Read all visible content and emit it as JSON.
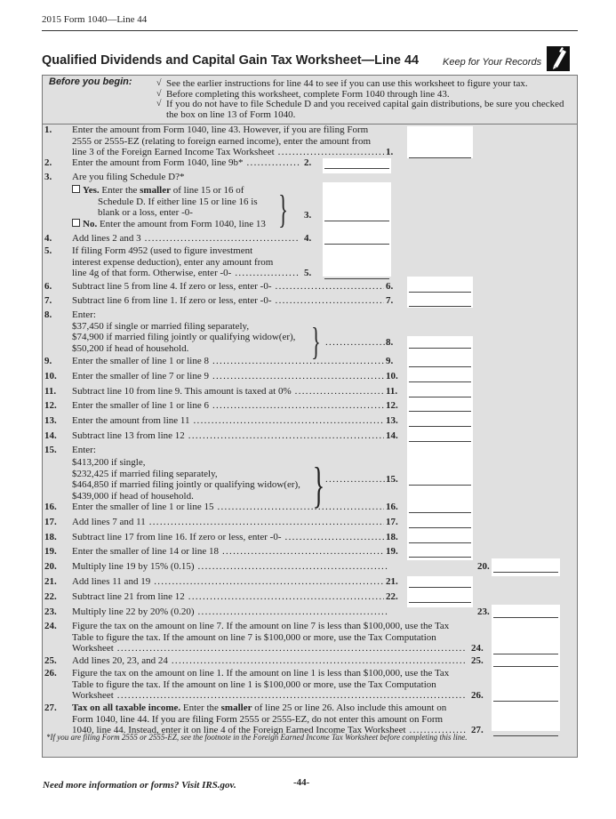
{
  "header": {
    "running_head": "2015 Form 1040—Line 44"
  },
  "title": "Qualified Dividends and Capital Gain Tax Worksheet—Line 44",
  "keep_label": "Keep for Your Records",
  "icons": {
    "pencil": "pencil-icon",
    "check": "check-icon",
    "checkbox": "checkbox-icon"
  },
  "before_you_begin": {
    "label": "Before you begin:",
    "check_glyph": "√",
    "items": [
      [
        "See the earlier instructions for line 44 to see if you can use this worksheet to figure your tax."
      ],
      [
        "Before completing this worksheet, complete Form 1040 through line 43."
      ],
      [
        "If you do not have to file Schedule D and you received capital gain distributions, be sure you checked",
        "the box on line 13 of Form 1040."
      ]
    ]
  },
  "items": [
    {
      "num": "1.",
      "ref": "1.",
      "lines": [
        "Enter the amount from Form 1040, line 43. However, if you are filing Form",
        "2555 or 2555-EZ (relating to foreign earned income), enter the amount from",
        "line 3 of the Foreign Earned Income Tax Worksheet"
      ]
    },
    {
      "num": "2.",
      "ref": "2.",
      "lines": [
        "Enter the amount from Form 1040, line 9b*"
      ]
    },
    {
      "num": "3.",
      "ref": "3.",
      "lines": [
        "Are you filing Schedule D?*"
      ],
      "yes": {
        "label": "Yes.",
        "text": [
          [
            [
              "Enter the ",
              false
            ],
            [
              "smaller",
              true
            ],
            [
              " of line 15 or 16 of",
              false
            ]
          ],
          "Schedule D. If either line 15 or line 16 is",
          "blank or a loss, enter -0-"
        ]
      },
      "no": {
        "label": "No.",
        "text": "Enter the amount from Form 1040, line 13"
      }
    },
    {
      "num": "4.",
      "ref": "4.",
      "lines": [
        "Add lines 2 and 3"
      ]
    },
    {
      "num": "5.",
      "ref": "5.",
      "lines": [
        "If filing Form 4952 (used to figure investment",
        "interest expense deduction), enter any amount from",
        "line 4g of that form. Otherwise, enter -0-"
      ]
    },
    {
      "num": "6.",
      "ref": "6.",
      "lines": [
        "Subtract line 5 from line 4. If zero or less, enter -0-"
      ]
    },
    {
      "num": "7.",
      "ref": "7.",
      "lines": [
        "Subtract line 6 from line 1. If zero or less, enter -0-"
      ]
    },
    {
      "num": "8.",
      "ref": "8.",
      "lines": [
        "Enter:"
      ],
      "options": [
        "$37,450 if single or married filing separately,",
        "$74,900 if married filing jointly or qualifying widow(er),",
        "$50,200 if head of household."
      ]
    },
    {
      "num": "9.",
      "ref": "9.",
      "lines": [
        "Enter the smaller of line 1 or line 8"
      ]
    },
    {
      "num": "10.",
      "ref": "10.",
      "lines": [
        "Enter the smaller of line 7 or line 9"
      ]
    },
    {
      "num": "11.",
      "ref": "11.",
      "lines": [
        "Subtract line 10 from line 9. This amount is taxed at 0%"
      ]
    },
    {
      "num": "12.",
      "ref": "12.",
      "lines": [
        "Enter the smaller of line 1 or line 6"
      ]
    },
    {
      "num": "13.",
      "ref": "13.",
      "lines": [
        "Enter the amount from line 11"
      ]
    },
    {
      "num": "14.",
      "ref": "14.",
      "lines": [
        "Subtract line 13 from line 12"
      ]
    },
    {
      "num": "15.",
      "ref": "15.",
      "lines": [
        "Enter:"
      ],
      "options": [
        "$413,200 if single,",
        "$232,425 if married filing separately,",
        "$464,850 if married filing jointly or qualifying widow(er),",
        "$439,000 if head of household."
      ]
    },
    {
      "num": "16.",
      "ref": "16.",
      "lines": [
        "Enter the smaller of line 1 or line 15"
      ]
    },
    {
      "num": "17.",
      "ref": "17.",
      "lines": [
        "Add lines 7 and 11"
      ]
    },
    {
      "num": "18.",
      "ref": "18.",
      "lines": [
        "Subtract line 17 from line 16. If zero or less, enter -0-"
      ]
    },
    {
      "num": "19.",
      "ref": "19.",
      "lines": [
        "Enter the smaller of line 14 or line 18"
      ]
    },
    {
      "num": "20.",
      "ref": "20.",
      "lines": [
        "Multiply line 19 by 15% (0.15)"
      ]
    },
    {
      "num": "21.",
      "ref": "21.",
      "lines": [
        "Add lines 11 and 19"
      ]
    },
    {
      "num": "22.",
      "ref": "22.",
      "lines": [
        "Subtract line 21 from line 12"
      ]
    },
    {
      "num": "23.",
      "ref": "23.",
      "lines": [
        "Multiply line 22 by 20% (0.20)"
      ]
    },
    {
      "num": "24.",
      "ref": "24.",
      "lines": [
        "Figure the tax on the amount on line 7. If the amount on line 7 is less than $100,000, use the Tax",
        "Table to figure the tax. If the amount on line 7 is $100,000 or more, use the Tax Computation",
        "Worksheet"
      ]
    },
    {
      "num": "25.",
      "ref": "25.",
      "lines": [
        "Add lines 20, 23, and 24"
      ]
    },
    {
      "num": "26.",
      "ref": "26.",
      "lines": [
        "Figure the tax on the amount on line 1. If the amount on line 1 is less than $100,000, use the Tax",
        "Table to figure the tax. If the amount on line 1 is $100,000 or more, use the Tax Computation",
        "Worksheet"
      ]
    },
    {
      "num": "27.",
      "ref": "27.",
      "lines": [
        [
          [
            "Tax on all taxable income.",
            true
          ],
          [
            " Enter the ",
            false
          ],
          [
            "smaller",
            true
          ],
          [
            " of line 25 or line 26. Also include this amount on",
            false
          ]
        ],
        "Form 1040, line 44. If you are filing Form 2555 or 2555-EZ, do not enter this amount on Form",
        "1040, line 44. Instead, enter it on line 4 of the Foreign Earned Income Tax Worksheet"
      ]
    }
  ],
  "footnote": "*If you are filing Form 2555 or 2555-EZ, see the footnote in the Foreign Earned Income Tax Worksheet before completing this line.",
  "footer": {
    "help_text": "Need more information or forms? Visit IRS.gov.",
    "page_number": "-44-"
  }
}
